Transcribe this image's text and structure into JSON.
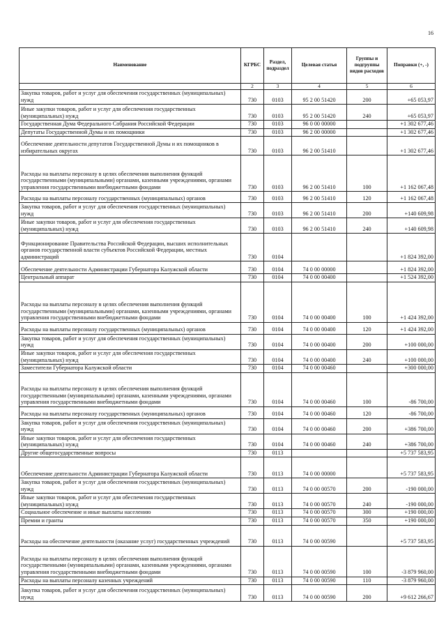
{
  "page_number": "16",
  "headers": [
    "Наименование",
    "КГРБС",
    "Раздел, подраздел",
    "Целевая статья",
    "Группы и подгруппы видов расходов",
    "Поправки (+, -)"
  ],
  "column_numbers": [
    "",
    "2",
    "3",
    "4",
    "5",
    "6"
  ],
  "rows": [
    {
      "name": "Закупка товаров, работ и услуг для обеспечения государственных (муниципальных) нужд",
      "kgrbs": "730",
      "razdel": "0103",
      "cs": "95 2 00 51420",
      "vr": "200",
      "amount": "+65 053,97"
    },
    {
      "name": "Иные закупки товаров, работ и услуг для обеспечения государственных (муниципальных) нужд",
      "kgrbs": "730",
      "razdel": "0103",
      "cs": "95 2 00 51420",
      "vr": "240",
      "amount": "+65 053,97"
    },
    {
      "name": "Государственная Дума Федерального Собрания Российской Федерации",
      "kgrbs": "730",
      "razdel": "0103",
      "cs": "96 0 00 00000",
      "vr": "",
      "amount": "+1 302 677,46"
    },
    {
      "name": "Депутаты Государственной Думы и их помощники",
      "kgrbs": "730",
      "razdel": "0103",
      "cs": "96 2 00 00000",
      "vr": "",
      "amount": "+1 302 677,46"
    },
    {
      "name": "Обеспечение деятельности депутатов Государственной Думы и их помощников в избирательных округах",
      "kgrbs": "730",
      "razdel": "0103",
      "cs": "96 2 00 51410",
      "vr": "",
      "amount": "+1 302 677,46"
    },
    {
      "name": "Расходы на выплаты персоналу в целях обеспечения выполнения функций государственными (муниципальными) органами, казенными учреждениями, органами управления государственными внебюджетными фондами",
      "kgrbs": "730",
      "razdel": "0103",
      "cs": "96 2 00 51410",
      "vr": "100",
      "amount": "+1 162 067,48"
    },
    {
      "name": "Расходы на выплаты персоналу государственных (муниципальных) органов",
      "kgrbs": "730",
      "razdel": "0103",
      "cs": "96 2 00 51410",
      "vr": "120",
      "amount": "+1 162 067,48"
    },
    {
      "name": "Закупка товаров, работ и услуг для обеспечения государственных (муниципальных) нужд",
      "kgrbs": "730",
      "razdel": "0103",
      "cs": "96 2 00 51410",
      "vr": "200",
      "amount": "+140 609,98"
    },
    {
      "name": "Иные закупки товаров, работ и услуг для обеспечения государственных (муниципальных) нужд",
      "kgrbs": "730",
      "razdel": "0103",
      "cs": "96 2 00 51410",
      "vr": "240",
      "amount": "+140 609,98"
    },
    {
      "name": "Функционирование Правительства Российской Федерации, высших исполнительных органов государственной власти субъектов Российской Федерации, местных администраций",
      "kgrbs": "730",
      "razdel": "0104",
      "cs": "",
      "vr": "",
      "amount": "+1 824 392,00"
    },
    {
      "name": "Обеспечение деятельности Администрации Губернатора Калужской области",
      "kgrbs": "730",
      "razdel": "0104",
      "cs": "74 0 00 00000",
      "vr": "",
      "amount": "+1 824 392,00"
    },
    {
      "name": "Центральный аппарат",
      "kgrbs": "730",
      "razdel": "0104",
      "cs": "74 0 00 00400",
      "vr": "",
      "amount": "+1 524 392,00"
    },
    {
      "name": "Расходы на выплаты персоналу в целях обеспечения выполнения функций государственными (муниципальными) органами, казенными учреждениями, органами управления государственными внебюджетными фондами",
      "kgrbs": "730",
      "razdel": "0104",
      "cs": "74 0 00 00400",
      "vr": "100",
      "amount": "+1 424 392,00"
    },
    {
      "name": "Расходы на выплаты персоналу государственных (муниципальных) органов",
      "kgrbs": "730",
      "razdel": "0104",
      "cs": "74 0 00 00400",
      "vr": "120",
      "amount": "+1 424 392,00"
    },
    {
      "name": "Закупка товаров, работ и услуг для обеспечения государственных (муниципальных) нужд",
      "kgrbs": "730",
      "razdel": "0104",
      "cs": "74 0 00 00400",
      "vr": "200",
      "amount": "+100 000,00"
    },
    {
      "name": "Иные закупки товаров, работ и услуг для обеспечения государственных (муниципальных) нужд",
      "kgrbs": "730",
      "razdel": "0104",
      "cs": "74 0 00 00400",
      "vr": "240",
      "amount": "+100 000,00"
    },
    {
      "name": "Заместители Губернатора Калужской области",
      "kgrbs": "730",
      "razdel": "0104",
      "cs": "74 0 00 00460",
      "vr": "",
      "amount": "+300 000,00"
    },
    {
      "name": "Расходы на выплаты персоналу в целях обеспечения выполнения функций государственными (муниципальными) органами, казенными учреждениями, органами управления государственными внебюджетными фондами",
      "kgrbs": "730",
      "razdel": "0104",
      "cs": "74 0 00 00460",
      "vr": "100",
      "amount": "-86 700,00"
    },
    {
      "name": "Расходы на выплаты персоналу государственных (муниципальных) органов",
      "kgrbs": "730",
      "razdel": "0104",
      "cs": "74 0 00 00460",
      "vr": "120",
      "amount": "-86 700,00"
    },
    {
      "name": "Закупка товаров, работ и услуг для обеспечения государственных (муниципальных) нужд",
      "kgrbs": "730",
      "razdel": "0104",
      "cs": "74 0 00 00460",
      "vr": "200",
      "amount": "+386 700,00"
    },
    {
      "name": "Иные закупки товаров, работ и услуг для обеспечения государственных (муниципальных) нужд",
      "kgrbs": "730",
      "razdel": "0104",
      "cs": "74 0 00 00460",
      "vr": "240",
      "amount": "+386 700,00"
    },
    {
      "name": "Другие общегосударственные вопросы",
      "kgrbs": "730",
      "razdel": "0113",
      "cs": "",
      "vr": "",
      "amount": "+5 737 583,95"
    },
    {
      "name": "Обеспечение деятельности Администрации Губернатора Калужской области",
      "kgrbs": "730",
      "razdel": "0113",
      "cs": "74 0 00 00000",
      "vr": "",
      "amount": "+5 737 583,95"
    },
    {
      "name": "Закупка товаров, работ и услуг для обеспечения государственных (муниципальных) нужд",
      "kgrbs": "730",
      "razdel": "0113",
      "cs": "74 0 00 00570",
      "vr": "200",
      "amount": "-190 000,00"
    },
    {
      "name": "Иные закупки товаров, работ и услуг для обеспечения государственных (муниципальных) нужд",
      "kgrbs": "730",
      "razdel": "0113",
      "cs": "74 0 00 00570",
      "vr": "240",
      "amount": "-190 000,00"
    },
    {
      "name": "Социальное обеспечение и иные выплаты населению",
      "kgrbs": "730",
      "razdel": "0113",
      "cs": "74 0 00 00570",
      "vr": "300",
      "amount": "+190 000,00"
    },
    {
      "name": "Премии и гранты",
      "kgrbs": "730",
      "razdel": "0113",
      "cs": "74 0 00 00570",
      "vr": "350",
      "amount": "+190 000,00"
    },
    {
      "name": "Расходы на обеспечение деятельности (оказание услуг) государственных учреждений",
      "kgrbs": "730",
      "razdel": "0113",
      "cs": "74 0 00 00590",
      "vr": "",
      "amount": "+5 737 583,95"
    },
    {
      "name": "Расходы на выплаты персоналу в целях обеспечения выполнения функций государственными (муниципальными) органами, казенными учреждениями, органами управления государственными внебюджетными фондами",
      "kgrbs": "730",
      "razdel": "0113",
      "cs": "74 0 00 00590",
      "vr": "100",
      "amount": "-3 879 960,00"
    },
    {
      "name": "Расходы на выплаты персоналу казенных учреждений",
      "kgrbs": "730",
      "razdel": "0113",
      "cs": "74 0 00 00590",
      "vr": "110",
      "amount": "-3 879 960,00"
    },
    {
      "name": "Закупка товаров, работ и услуг для обеспечения государственных (муниципальных) нужд",
      "kgrbs": "730",
      "razdel": "0113",
      "cs": "74 0 00 00590",
      "vr": "200",
      "amount": "+9 612 266,67"
    }
  ]
}
